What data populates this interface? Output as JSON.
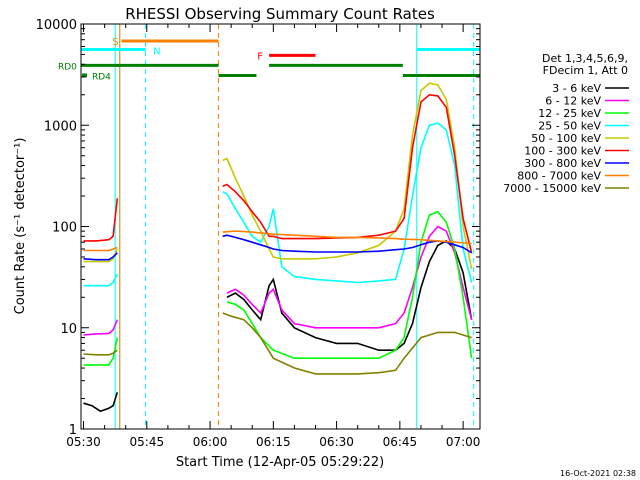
{
  "chart_data": {
    "type": "line",
    "title": "RHESSI Observing Summary Count Rates",
    "xlabel": "Start Time (12-Apr-05 05:29:22)",
    "ylabel": "Count Rate (s⁻¹ detector⁻¹)",
    "x_ticks": [
      "05:30",
      "05:45",
      "06:00",
      "06:15",
      "06:30",
      "06:45",
      "07:00"
    ],
    "x_tick_minutes": [
      30,
      45,
      60,
      75,
      90,
      105,
      120
    ],
    "xlim_minutes": [
      29.4,
      124.0
    ],
    "y_scale": "log",
    "ylim": [
      1,
      10000
    ],
    "y_ticks": [
      "1",
      "10",
      "100",
      "1000",
      "10000"
    ],
    "y_tick_values": [
      1,
      10,
      100,
      1000,
      10000
    ],
    "legend_header": [
      "Det 1,3,4,5,6,9,",
      "FDecim 1, Att 0"
    ],
    "legend_placement": "right",
    "timestamp": "16-Oct-2021 02:38",
    "flags": {
      "S": {
        "label": "S",
        "color": "#ff7f00",
        "level": 6800,
        "segments": [
          [
            39.0,
            62.0
          ]
        ]
      },
      "N": {
        "label": "N",
        "color": "#00ffff",
        "level": 5600,
        "segments": [
          [
            29.4,
            44.7
          ],
          [
            109.0,
            124.0
          ]
        ]
      },
      "F": {
        "label": "F",
        "color": "#ff0000",
        "level": 4900,
        "segments": [
          [
            74.0,
            85.0
          ]
        ]
      },
      "RD0": {
        "label": "RD0",
        "color": "#007f00",
        "level": 3900,
        "segments": [
          [
            29.4,
            62.0
          ],
          [
            74.0,
            105.7
          ]
        ]
      },
      "RD4": {
        "label": "RD4",
        "color": "#007f00",
        "level": 3100,
        "segments": [
          [
            62.0,
            71.0
          ],
          [
            105.7,
            124.0
          ]
        ]
      }
    },
    "event_lines": [
      {
        "minute": 37.5,
        "color": "#00ffff",
        "style": "solid"
      },
      {
        "minute": 38.6,
        "color": "#c08000",
        "style": "solid"
      },
      {
        "minute": 44.7,
        "color": "#00ffff",
        "style": "dashed"
      },
      {
        "minute": 62.0,
        "color": "#ff7f00",
        "style": "dashed"
      },
      {
        "minute": 109.0,
        "color": "#00ffff",
        "style": "solid"
      },
      {
        "minute": 122.5,
        "color": "#00ffff",
        "style": "dashed"
      }
    ],
    "series": [
      {
        "name": "3 - 6 keV",
        "color": "#000000",
        "segments": [
          {
            "x": [
              30,
              32,
              34,
              36,
              37,
              38
            ],
            "y": [
              1.8,
              1.7,
              1.5,
              1.6,
              1.7,
              2.3
            ]
          },
          {
            "x": [
              64,
              66,
              68,
              70,
              72,
              74,
              75,
              77,
              80,
              85,
              90,
              95,
              100,
              104,
              106,
              108,
              110,
              112,
              114,
              116,
              118,
              120,
              122
            ],
            "y": [
              20,
              22,
              19,
              15,
              12,
              26,
              30,
              14,
              10,
              8,
              7,
              7,
              6,
              6,
              7,
              11,
              25,
              45,
              65,
              72,
              60,
              35,
              12
            ]
          }
        ]
      },
      {
        "name": "6 - 12 keV",
        "color": "#ff00ff",
        "segments": [
          {
            "x": [
              30,
              33,
              36,
              37,
              38
            ],
            "y": [
              8.5,
              8.7,
              8.8,
              9.5,
              12
            ]
          },
          {
            "x": [
              64,
              66,
              68,
              70,
              72,
              74,
              75,
              77,
              80,
              85,
              90,
              95,
              100,
              104,
              106,
              108,
              110,
              112,
              114,
              116,
              118,
              120,
              122
            ],
            "y": [
              22,
              24,
              21,
              17,
              14,
              22,
              24,
              15,
              11,
              10,
              10,
              10,
              10,
              11,
              14,
              25,
              50,
              80,
              100,
              90,
              55,
              25,
              12
            ]
          }
        ]
      },
      {
        "name": "12 - 25 keV",
        "color": "#00ff00",
        "segments": [
          {
            "x": [
              30,
              33,
              36,
              37,
              38
            ],
            "y": [
              4.3,
              4.3,
              4.3,
              5,
              8
            ]
          },
          {
            "x": [
              64,
              66,
              68,
              70,
              72,
              75,
              80,
              85,
              90,
              95,
              100,
              104,
              106,
              108,
              110,
              112,
              114,
              116,
              118,
              120,
              122
            ],
            "y": [
              18,
              17,
              15,
              11,
              8,
              6,
              5,
              5,
              5,
              5,
              5,
              6,
              8,
              20,
              70,
              130,
              140,
              110,
              60,
              20,
              5
            ]
          }
        ]
      },
      {
        "name": "25 - 50 keV",
        "color": "#00ffff",
        "segments": [
          {
            "x": [
              30,
              33,
              36,
              37,
              38
            ],
            "y": [
              26,
              26,
              26,
              28,
              34
            ]
          },
          {
            "x": [
              63,
              64,
              66,
              68,
              70,
              72,
              74,
              75,
              77,
              80,
              85,
              90,
              95,
              100,
              104,
              106,
              108,
              110,
              112,
              114,
              116,
              118,
              120,
              122
            ],
            "y": [
              220,
              210,
              150,
              110,
              80,
              70,
              100,
              150,
              40,
              32,
              30,
              29,
              28,
              29,
              30,
              60,
              200,
              600,
              1000,
              1050,
              900,
              400,
              60,
              28
            ]
          }
        ]
      },
      {
        "name": "50 - 100 keV",
        "color": "#c8c800",
        "segments": [
          {
            "x": [
              30,
              33,
              36,
              37,
              38
            ],
            "y": [
              45,
              45,
              45,
              48,
              60
            ]
          },
          {
            "x": [
              63,
              64,
              66,
              68,
              70,
              72,
              74,
              75,
              77,
              80,
              85,
              90,
              95,
              100,
              104,
              106,
              108,
              110,
              112,
              114,
              116,
              118,
              120,
              122
            ],
            "y": [
              450,
              470,
              300,
              200,
              130,
              90,
              60,
              50,
              48,
              48,
              48,
              50,
              55,
              65,
              90,
              150,
              800,
              2200,
              2600,
              2500,
              1800,
              600,
              100,
              38
            ]
          }
        ]
      },
      {
        "name": "100 - 300 keV",
        "color": "#ff0000",
        "segments": [
          {
            "x": [
              30,
              33,
              36,
              37,
              38
            ],
            "y": [
              72,
              72,
              74,
              80,
              190
            ]
          },
          {
            "x": [
              63,
              64,
              66,
              68,
              70,
              72,
              74,
              75,
              77,
              80,
              85,
              90,
              95,
              100,
              104,
              106,
              108,
              110,
              112,
              114,
              116,
              118,
              120,
              122
            ],
            "y": [
              250,
              260,
              220,
              180,
              140,
              110,
              80,
              80,
              76,
              76,
              76,
              77,
              78,
              82,
              90,
              120,
              600,
              1700,
              2000,
              1950,
              1500,
              500,
              120,
              55
            ]
          }
        ]
      },
      {
        "name": "300 - 800 keV",
        "color": "#0000ff",
        "segments": [
          {
            "x": [
              30,
              33,
              36,
              37,
              38
            ],
            "y": [
              48,
              47,
              47,
              50,
              55
            ]
          },
          {
            "x": [
              63,
              64,
              66,
              68,
              70,
              72,
              74,
              75,
              77,
              80,
              85,
              90,
              95,
              100,
              104,
              106,
              108,
              110,
              112,
              114,
              116,
              118,
              120,
              122
            ],
            "y": [
              80,
              82,
              78,
              74,
              70,
              66,
              62,
              60,
              58,
              57,
              56,
              56,
              56,
              57,
              59,
              60,
              62,
              66,
              70,
              72,
              70,
              66,
              62,
              55
            ]
          }
        ]
      },
      {
        "name": "800 - 7000 keV",
        "color": "#ff7f00",
        "segments": [
          {
            "x": [
              30,
              33,
              36,
              37,
              38
            ],
            "y": [
              58,
              58,
              58,
              60,
              62
            ]
          },
          {
            "x": [
              63,
              66,
              70,
              75,
              80,
              85,
              90,
              95,
              100,
              104,
              106,
              110,
              114,
              118,
              122
            ],
            "y": [
              88,
              90,
              88,
              84,
              82,
              80,
              78,
              78,
              77,
              76,
              75,
              74,
              72,
              70,
              68
            ]
          }
        ]
      },
      {
        "name": "7000 - 15000 keV",
        "color": "#808000",
        "segments": [
          {
            "x": [
              30,
              33,
              36,
              37,
              38
            ],
            "y": [
              5.5,
              5.4,
              5.4,
              5.6,
              6
            ]
          },
          {
            "x": [
              63,
              65,
              68,
              70,
              72,
              75,
              80,
              85,
              90,
              95,
              100,
              104,
              106,
              110,
              114,
              118,
              122
            ],
            "y": [
              14,
              13,
              12,
              10,
              8,
              5,
              4,
              3.5,
              3.5,
              3.5,
              3.6,
              3.8,
              5,
              8,
              9,
              9,
              8
            ]
          }
        ]
      }
    ]
  }
}
